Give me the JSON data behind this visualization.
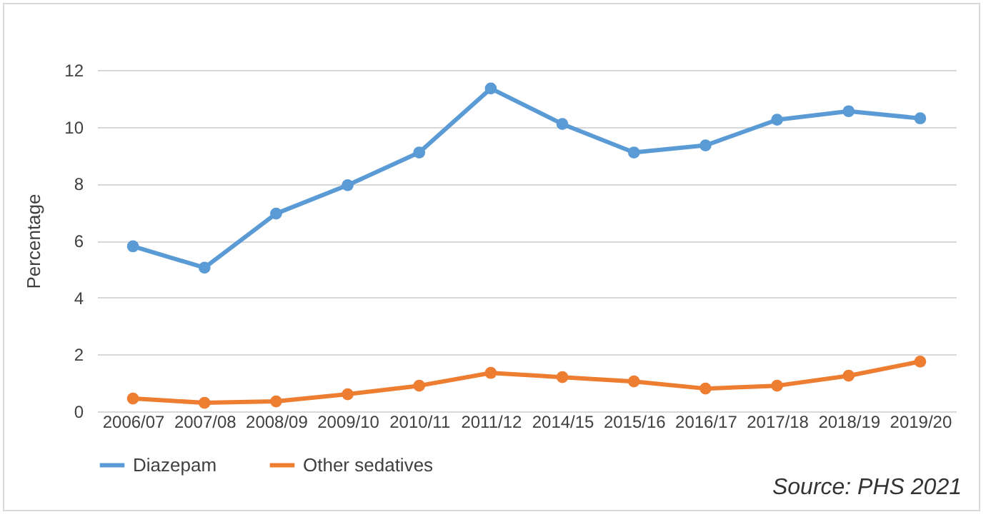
{
  "chart_data": {
    "type": "line",
    "ylabel": "Percentage",
    "categories": [
      "2006/07",
      "2007/08",
      "2008/09",
      "2009/10",
      "2010/11",
      "2011/12",
      "2014/15",
      "2015/16",
      "2016/17",
      "2017/18",
      "2018/19",
      "2019/20"
    ],
    "series": [
      {
        "name": "Diazepam",
        "color": "#5b9bd5",
        "values": [
          5.8,
          5.05,
          6.95,
          7.95,
          9.1,
          11.35,
          10.1,
          9.1,
          9.35,
          10.25,
          10.55,
          10.3
        ]
      },
      {
        "name": "Other sedatives",
        "color": "#ed7d31",
        "values": [
          0.45,
          0.3,
          0.35,
          0.6,
          0.9,
          1.35,
          1.2,
          1.05,
          0.8,
          0.9,
          1.25,
          1.75
        ]
      }
    ],
    "ylim": [
      0,
      12
    ],
    "yticks": [
      0,
      2,
      4,
      6,
      8,
      10,
      12
    ],
    "grid": "y",
    "legend": "bottom",
    "marker": "circle",
    "line_style": "solid",
    "annotations": [
      "Source: PHS 2021"
    ]
  }
}
